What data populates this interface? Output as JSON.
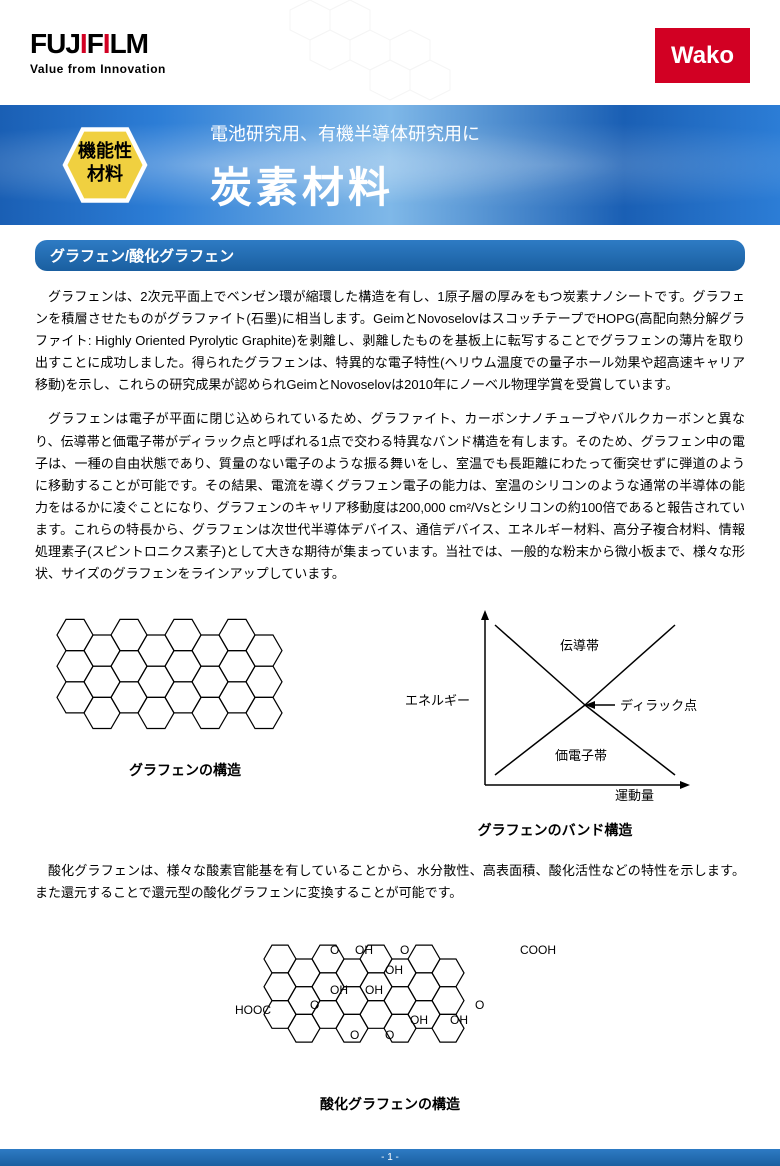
{
  "header": {
    "logo_main_parts": [
      "FUJ",
      "I",
      "F",
      "I",
      "LM"
    ],
    "logo_sub": "Value from Innovation",
    "wako": "Wako"
  },
  "banner": {
    "badge_line1": "機能性",
    "badge_line2": "材料",
    "subtitle": "電池研究用、有機半導体研究用に",
    "title": "炭素材料"
  },
  "section": {
    "header": "グラフェン/酸化グラフェン",
    "para1": "グラフェンは、2次元平面上でベンゼン環が縮環した構造を有し、1原子層の厚みをもつ炭素ナノシートです。グラフェンを積層させたものがグラファイト(石墨)に相当します。GeimとNovoselovはスコッチテープでHOPG(高配向熱分解グラファイト: Highly Oriented Pyrolytic Graphite)を剥離し、剥離したものを基板上に転写することでグラフェンの薄片を取り出すことに成功しました。得られたグラフェンは、特異的な電子特性(ヘリウム温度での量子ホール効果や超高速キャリア移動)を示し、これらの研究成果が認められGeimとNovoselovは2010年にノーベル物理学賞を受賞しています。",
    "para2": "グラフェンは電子が平面に閉じ込められているため、グラファイト、カーボンナノチューブやバルクカーボンと異なり、伝導帯と価電子帯がディラック点と呼ばれる1点で交わる特異なバンド構造を有します。そのため、グラフェン中の電子は、一種の自由状態であり、質量のない電子のような振る舞いをし、室温でも長距離にわたって衝突せずに弾道のように移動することが可能です。その結果、電流を導くグラフェン電子の能力は、室温のシリコンのような通常の半導体の能力をはるかに凌ぐことになり、グラフェンのキャリア移動度は200,000 cm²/Vsとシリコンの約100倍であると報告されています。これらの特長から、グラフェンは次世代半導体デバイス、通信デバイス、エネルギー材料、高分子複合材料、情報処理素子(スピントロニクス素子)として大きな期待が集まっています。当社では、一般的な粉末から微小板まで、様々な形状、サイズのグラフェンをラインアップしています。",
    "para3": "酸化グラフェンは、様々な酸素官能基を有していることから、水分散性、高表面積、酸化活性などの特性を示します。また還元することで還元型の酸化グラフェンに変換することが可能です。"
  },
  "diagrams": {
    "graphene_caption": "グラフェンの構造",
    "band_caption": "グラフェンのバンド構造",
    "energy_label": "エネルギー",
    "conduction_band": "伝導帯",
    "dirac_point": "ディラック点",
    "valence_band": "価電子帯",
    "momentum": "運動量",
    "oxide_caption": "酸化グラフェンの構造",
    "oh_label": "OH",
    "cooh_label": "COOH",
    "hooc_label": "HOOC",
    "o_label": "O"
  },
  "styling": {
    "accent_blue": "#1a5fa0",
    "accent_red": "#d20023",
    "badge_yellow": "#f0d040",
    "hex_rows": 3,
    "hex_cols": 8,
    "hex_size": 18
  },
  "footer": {
    "page": "- 1 -"
  }
}
